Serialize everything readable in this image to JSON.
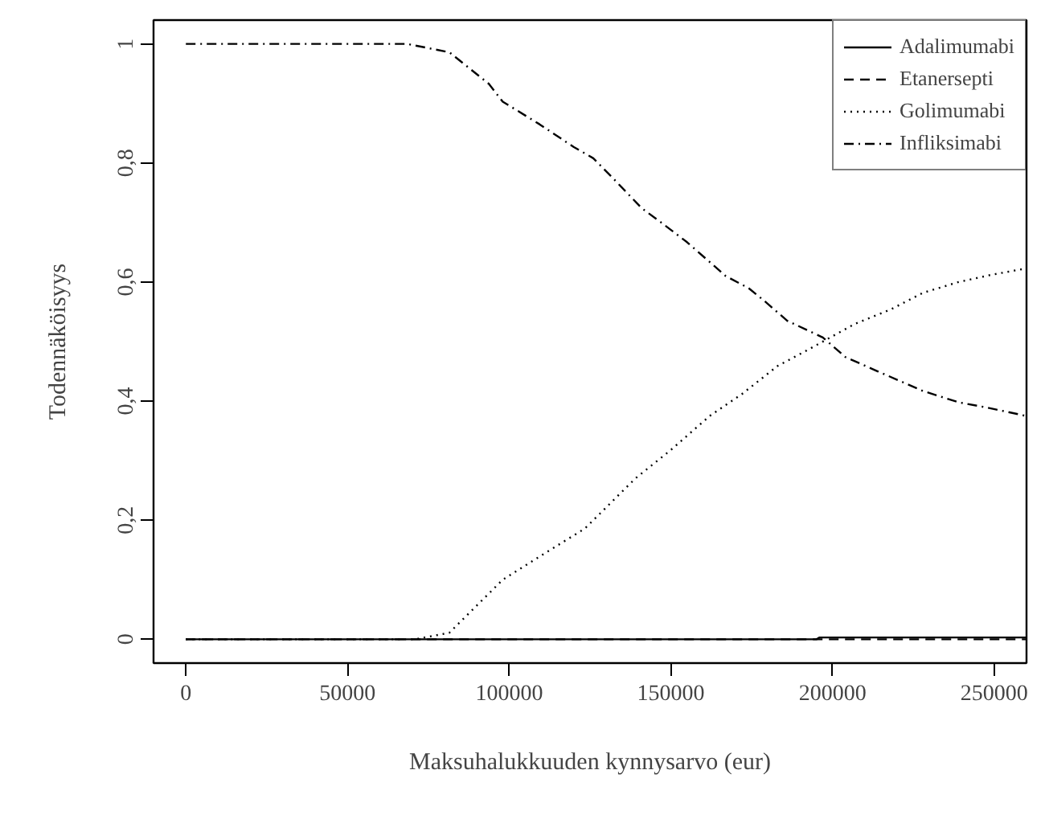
{
  "chart_data": {
    "type": "line",
    "xlabel": "Maksuhalukkuuden kynnysarvo (eur)",
    "ylabel": "Todennäköisyys",
    "xlim": [
      -10000,
      260000
    ],
    "xticks": [
      0,
      50000,
      100000,
      150000,
      200000,
      250000
    ],
    "ylim": [
      -0.04,
      1.04
    ],
    "yticks": [
      0,
      {
        "value": 0.2,
        "label": "0,2"
      },
      {
        "value": 0.4,
        "label": "0,4"
      },
      {
        "value": 0.6,
        "label": "0,6"
      },
      {
        "value": 0.8,
        "label": "0,8"
      },
      1
    ],
    "grid": false,
    "legend": "top right",
    "series": [
      {
        "name": "Adalimumabi",
        "color": "#000000",
        "line_style": "solid",
        "x": [
          0,
          195000,
          196000,
          260000
        ],
        "values": [
          0,
          0,
          0.003,
          0.003
        ]
      },
      {
        "name": "Etanersepti",
        "color": "#000000",
        "line_style": "dashed",
        "x": [
          0,
          260000
        ],
        "values": [
          0,
          0
        ]
      },
      {
        "name": "Golimumabi",
        "color": "#000000",
        "line_style": "dotted",
        "x": [
          0,
          71000,
          81500,
          98000,
          109400,
          123400,
          139000,
          150000,
          162000,
          172000,
          183000,
          193000,
          207000,
          218000,
          228000,
          239000,
          249000,
          260000
        ],
        "values": [
          0,
          0,
          0.011,
          0.1,
          0.139,
          0.186,
          0.27,
          0.318,
          0.375,
          0.412,
          0.459,
          0.488,
          0.53,
          0.554,
          0.582,
          0.6,
          0.612,
          0.623
        ]
      },
      {
        "name": "Infliksimabi",
        "color": "#000000",
        "line_style": "dashdot",
        "x": [
          0,
          68400,
          81500,
          93700,
          98000,
          109400,
          119900,
          126000,
          132000,
          141000,
          147000,
          155000,
          167000,
          174000,
          179000,
          186000,
          197000,
          204000,
          214000,
          228000,
          239000,
          248000,
          260000
        ],
        "values": [
          1,
          1,
          0.986,
          0.933,
          0.903,
          0.865,
          0.827,
          0.808,
          0.775,
          0.724,
          0.7,
          0.667,
          0.61,
          0.59,
          0.568,
          0.535,
          0.507,
          0.474,
          0.45,
          0.417,
          0.398,
          0.389,
          0.375
        ]
      }
    ]
  }
}
